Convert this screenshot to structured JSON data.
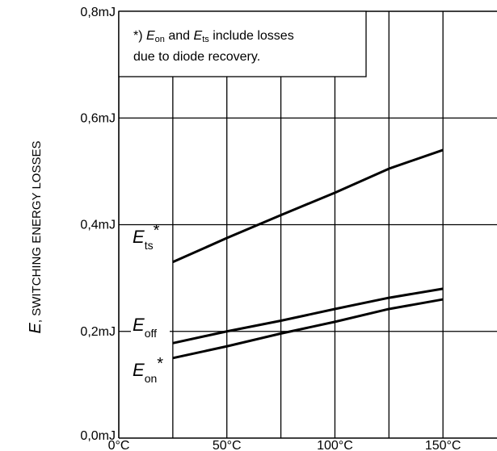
{
  "chart_data": {
    "type": "line",
    "xlabel": "",
    "ylabel": {
      "symbol": "E",
      "text": ", SWITCHING ENERGY LOSSES"
    },
    "xlim": [
      0,
      175
    ],
    "ylim": [
      0,
      0.8
    ],
    "x_ticks": [
      {
        "value": 0,
        "label": "0°C"
      },
      {
        "value": 50,
        "label": "50°C"
      },
      {
        "value": 100,
        "label": "100°C"
      },
      {
        "value": 150,
        "label": "150°C"
      }
    ],
    "y_ticks": [
      {
        "value": 0,
        "label": "0,0mJ"
      },
      {
        "value": 0.2,
        "label": "0,2mJ"
      },
      {
        "value": 0.4,
        "label": "0,4mJ"
      },
      {
        "value": 0.6,
        "label": "0,6mJ"
      },
      {
        "value": 0.8,
        "label": "0,8mJ"
      }
    ],
    "grid": true,
    "series": [
      {
        "id": "Ets",
        "name_main": "E",
        "name_sub": "ts",
        "name_suffix": "*",
        "x": [
          25,
          50,
          75,
          100,
          125,
          150
        ],
        "y": [
          0.33,
          0.375,
          0.418,
          0.46,
          0.505,
          0.54
        ]
      },
      {
        "id": "Eoff",
        "name_main": "E",
        "name_sub": "off",
        "name_suffix": "",
        "x": [
          25,
          50,
          75,
          100,
          125,
          150
        ],
        "y": [
          0.178,
          0.2,
          0.22,
          0.242,
          0.263,
          0.28
        ]
      },
      {
        "id": "Eon",
        "name_main": "E",
        "name_sub": "on",
        "name_suffix": "*",
        "x": [
          25,
          50,
          75,
          100,
          125,
          150
        ],
        "y": [
          0.15,
          0.172,
          0.196,
          0.218,
          0.242,
          0.26
        ]
      }
    ],
    "annotation": {
      "lines": [
        [
          {
            "text": "*) ",
            "style": "normal"
          },
          {
            "text": "E",
            "style": "italic"
          },
          {
            "text": "on",
            "style": "sub"
          },
          {
            "text": " and ",
            "style": "normal"
          },
          {
            "text": "E",
            "style": "italic"
          },
          {
            "text": "ts",
            "style": "sub"
          },
          {
            "text": " include losses",
            "style": "normal"
          }
        ],
        [
          {
            "text": "due to diode recovery.",
            "style": "normal"
          }
        ]
      ]
    }
  }
}
